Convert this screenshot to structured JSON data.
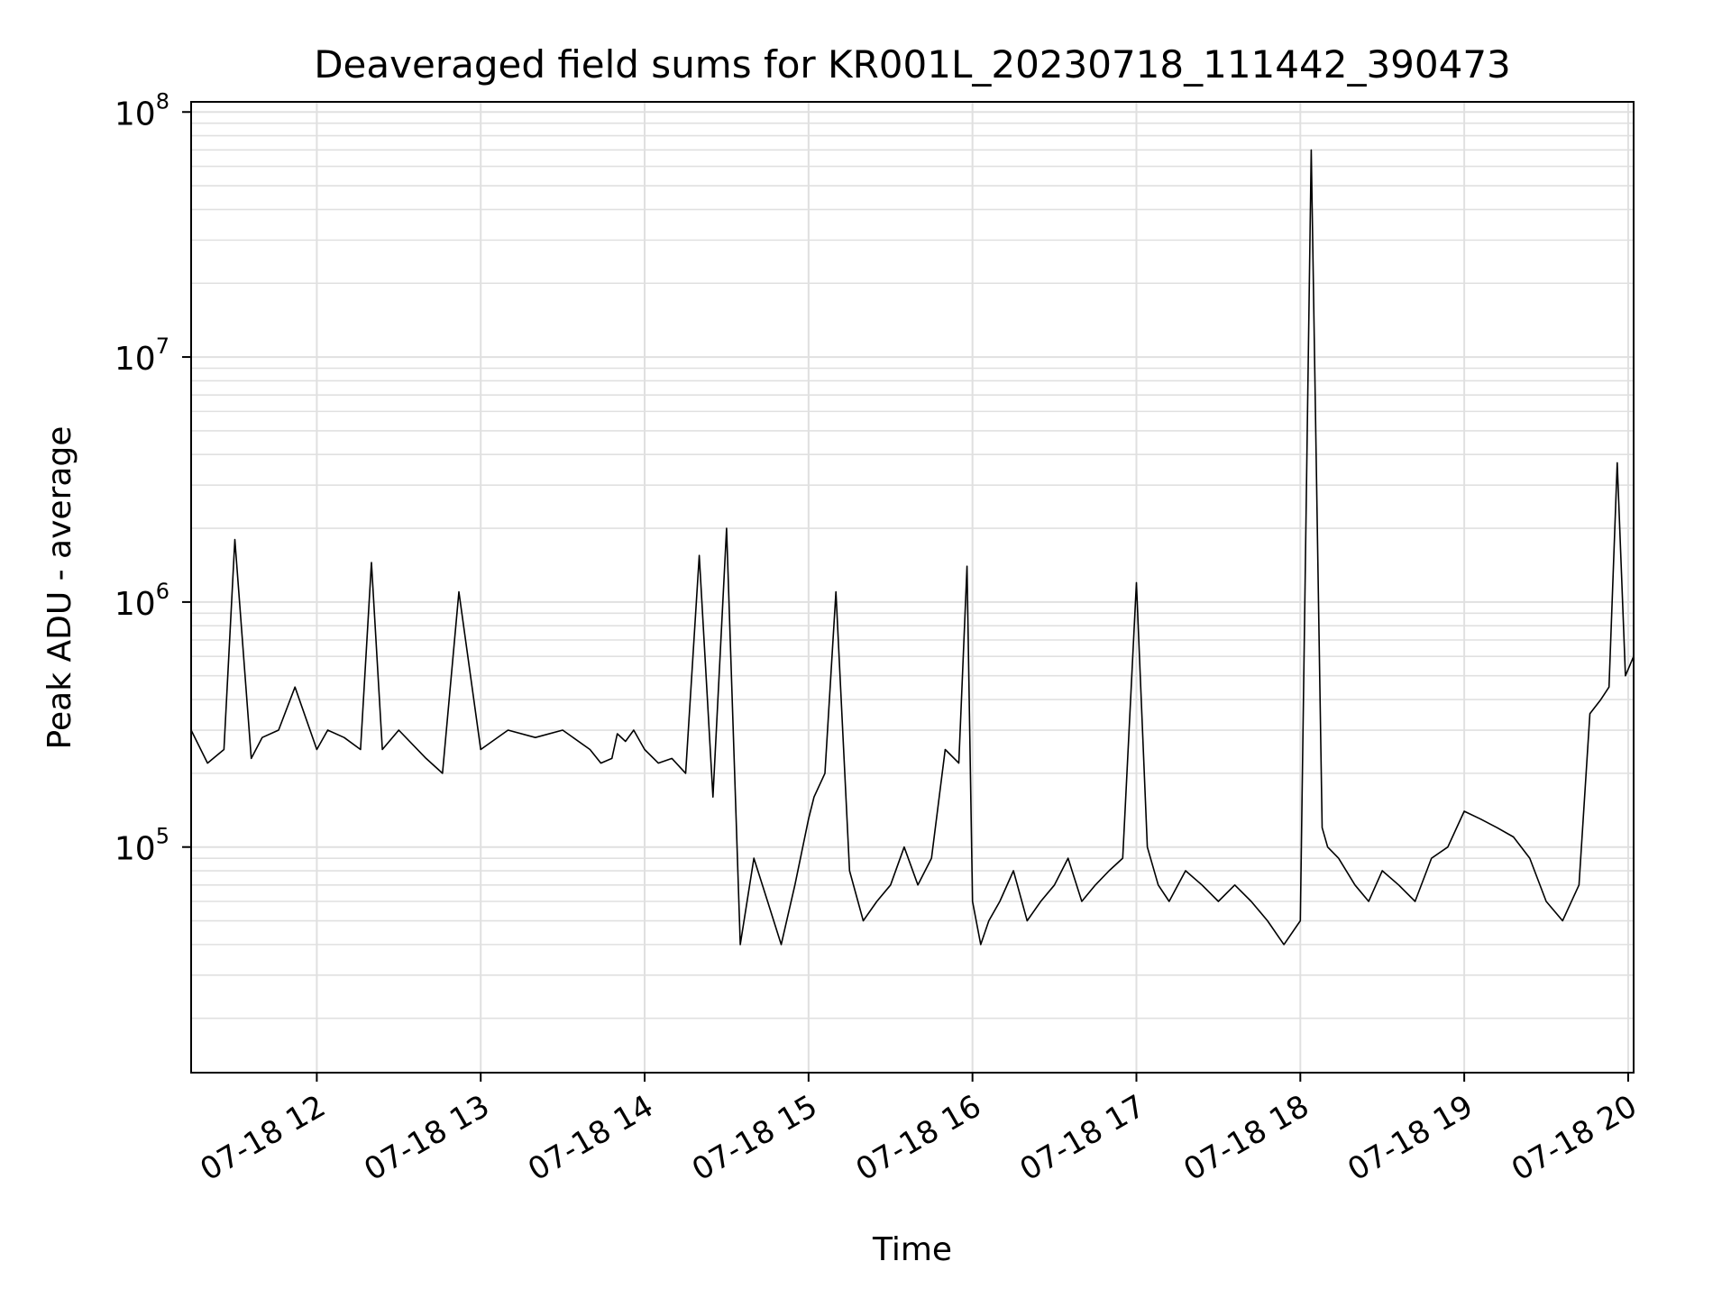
{
  "chart_data": {
    "type": "line",
    "title": "Deaveraged field sums for KR001L_20230718_111442_390473",
    "xlabel": "Time",
    "ylabel": "Peak ADU - average",
    "yscale": "log",
    "ylim": [
      12000,
      110000000
    ],
    "xlim": [
      "2023-07-18 11:14",
      "2023-07-18 20:02"
    ],
    "grid": true,
    "line_color": "#000000",
    "grid_color": "#e0e0e0",
    "x_ticks": [
      {
        "value": "2023-07-18 12:00",
        "label": "07-18 12"
      },
      {
        "value": "2023-07-18 13:00",
        "label": "07-18 13"
      },
      {
        "value": "2023-07-18 14:00",
        "label": "07-18 14"
      },
      {
        "value": "2023-07-18 15:00",
        "label": "07-18 15"
      },
      {
        "value": "2023-07-18 16:00",
        "label": "07-18 16"
      },
      {
        "value": "2023-07-18 17:00",
        "label": "07-18 17"
      },
      {
        "value": "2023-07-18 18:00",
        "label": "07-18 18"
      },
      {
        "value": "2023-07-18 19:00",
        "label": "07-18 19"
      },
      {
        "value": "2023-07-18 20:00",
        "label": "07-18 20"
      }
    ],
    "y_ticks": [
      {
        "value": 100000,
        "base": "10",
        "exp": "5"
      },
      {
        "value": 1000000,
        "base": "10",
        "exp": "6"
      },
      {
        "value": 10000000,
        "base": "10",
        "exp": "7"
      },
      {
        "value": 100000000,
        "base": "10",
        "exp": "8"
      }
    ],
    "series": [
      {
        "x": [
          "2023-07-18 11:14",
          "2023-07-18 11:20",
          "2023-07-18 11:26",
          "2023-07-18 11:30",
          "2023-07-18 11:36",
          "2023-07-18 11:40",
          "2023-07-18 11:46",
          "2023-07-18 11:52",
          "2023-07-18 12:00",
          "2023-07-18 12:04",
          "2023-07-18 12:10",
          "2023-07-18 12:16",
          "2023-07-18 12:20",
          "2023-07-18 12:24",
          "2023-07-18 12:30",
          "2023-07-18 12:40",
          "2023-07-18 12:46",
          "2023-07-18 12:52",
          "2023-07-18 13:00",
          "2023-07-18 13:10",
          "2023-07-18 13:20",
          "2023-07-18 13:30",
          "2023-07-18 13:40",
          "2023-07-18 13:44",
          "2023-07-18 13:48",
          "2023-07-18 13:50",
          "2023-07-18 13:53",
          "2023-07-18 13:56",
          "2023-07-18 14:00",
          "2023-07-18 14:05",
          "2023-07-18 14:10",
          "2023-07-18 14:15",
          "2023-07-18 14:20",
          "2023-07-18 14:25",
          "2023-07-18 14:30",
          "2023-07-18 14:35",
          "2023-07-18 14:40",
          "2023-07-18 14:45",
          "2023-07-18 14:50",
          "2023-07-18 14:55",
          "2023-07-18 15:00",
          "2023-07-18 15:02",
          "2023-07-18 15:06",
          "2023-07-18 15:10",
          "2023-07-18 15:15",
          "2023-07-18 15:20",
          "2023-07-18 15:25",
          "2023-07-18 15:30",
          "2023-07-18 15:35",
          "2023-07-18 15:40",
          "2023-07-18 15:45",
          "2023-07-18 15:50",
          "2023-07-18 15:55",
          "2023-07-18 15:58",
          "2023-07-18 16:00",
          "2023-07-18 16:03",
          "2023-07-18 16:06",
          "2023-07-18 16:10",
          "2023-07-18 16:15",
          "2023-07-18 16:20",
          "2023-07-18 16:25",
          "2023-07-18 16:30",
          "2023-07-18 16:35",
          "2023-07-18 16:40",
          "2023-07-18 16:45",
          "2023-07-18 16:50",
          "2023-07-18 16:55",
          "2023-07-18 17:00",
          "2023-07-18 17:04",
          "2023-07-18 17:08",
          "2023-07-18 17:12",
          "2023-07-18 17:18",
          "2023-07-18 17:24",
          "2023-07-18 17:30",
          "2023-07-18 17:36",
          "2023-07-18 17:42",
          "2023-07-18 17:48",
          "2023-07-18 17:54",
          "2023-07-18 18:00",
          "2023-07-18 18:04",
          "2023-07-18 18:08",
          "2023-07-18 18:10",
          "2023-07-18 18:14",
          "2023-07-18 18:20",
          "2023-07-18 18:25",
          "2023-07-18 18:30",
          "2023-07-18 18:36",
          "2023-07-18 18:42",
          "2023-07-18 18:48",
          "2023-07-18 18:54",
          "2023-07-18 19:00",
          "2023-07-18 19:06",
          "2023-07-18 19:12",
          "2023-07-18 19:18",
          "2023-07-18 19:24",
          "2023-07-18 19:30",
          "2023-07-18 19:36",
          "2023-07-18 19:42",
          "2023-07-18 19:46",
          "2023-07-18 19:50",
          "2023-07-18 19:53",
          "2023-07-18 19:56",
          "2023-07-18 19:59",
          "2023-07-18 20:02"
        ],
        "y": [
          300000,
          220000,
          250000,
          1800000,
          230000,
          280000,
          300000,
          450000,
          250000,
          300000,
          280000,
          250000,
          1450000,
          250000,
          300000,
          230000,
          200000,
          1100000,
          250000,
          300000,
          280000,
          300000,
          250000,
          220000,
          230000,
          290000,
          270000,
          300000,
          250000,
          220000,
          230000,
          200000,
          1550000,
          160000,
          2000000,
          40000,
          90000,
          60000,
          40000,
          70000,
          130000,
          160000,
          200000,
          1100000,
          80000,
          50000,
          60000,
          70000,
          100000,
          70000,
          90000,
          250000,
          220000,
          1400000,
          60000,
          40000,
          50000,
          60000,
          80000,
          50000,
          60000,
          70000,
          90000,
          60000,
          70000,
          80000,
          90000,
          1200000,
          100000,
          70000,
          60000,
          80000,
          70000,
          60000,
          70000,
          60000,
          50000,
          40000,
          50000,
          70000000,
          120000,
          100000,
          90000,
          70000,
          60000,
          80000,
          70000,
          60000,
          90000,
          100000,
          140000,
          130000,
          120000,
          110000,
          90000,
          60000,
          50000,
          70000,
          350000,
          400000,
          450000,
          3700000,
          500000,
          600000
        ]
      }
    ]
  }
}
